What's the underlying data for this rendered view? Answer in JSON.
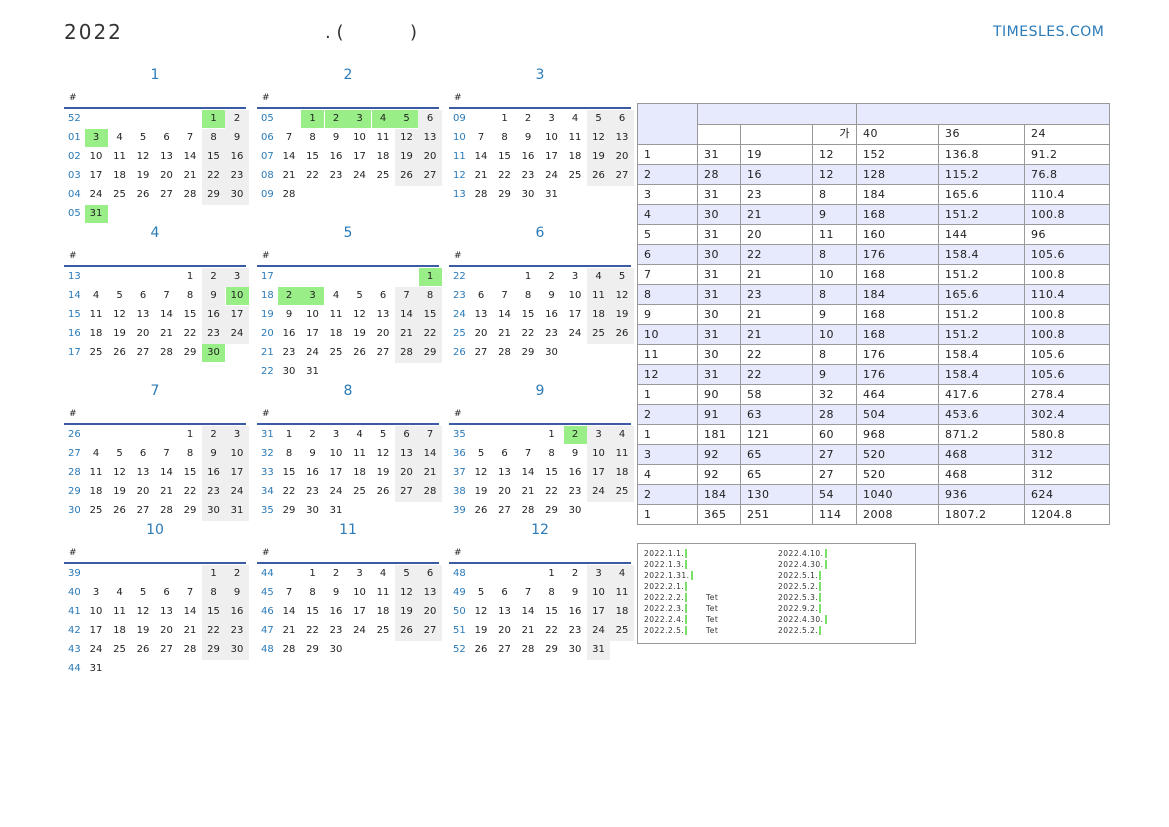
{
  "header": {
    "year": "2022",
    "subtitle_open": ". (",
    "subtitle_close": ")",
    "brand": "TIMESLES.COM"
  },
  "week_header": "#",
  "months": [
    {
      "name": "1",
      "highlight": [
        1,
        3,
        31
      ],
      "weeks": [
        {
          "week": "52",
          "days": [
            null,
            null,
            null,
            null,
            null,
            1,
            2
          ]
        },
        {
          "week": "01",
          "days": [
            3,
            4,
            5,
            6,
            7,
            8,
            9
          ]
        },
        {
          "week": "02",
          "days": [
            10,
            11,
            12,
            13,
            14,
            15,
            16
          ]
        },
        {
          "week": "03",
          "days": [
            17,
            18,
            19,
            20,
            21,
            22,
            23
          ]
        },
        {
          "week": "04",
          "days": [
            24,
            25,
            26,
            27,
            28,
            29,
            30
          ]
        },
        {
          "week": "05",
          "days": [
            31
          ]
        }
      ]
    },
    {
      "name": "2",
      "highlight": [
        1,
        2,
        3,
        4,
        5
      ],
      "weeks": [
        {
          "week": "05",
          "days": [
            null,
            1,
            2,
            3,
            4,
            5,
            6
          ]
        },
        {
          "week": "06",
          "days": [
            7,
            8,
            9,
            10,
            11,
            12,
            13
          ]
        },
        {
          "week": "07",
          "days": [
            14,
            15,
            16,
            17,
            18,
            19,
            20
          ]
        },
        {
          "week": "08",
          "days": [
            21,
            22,
            23,
            24,
            25,
            26,
            27
          ]
        },
        {
          "week": "09",
          "days": [
            28
          ]
        }
      ]
    },
    {
      "name": "3",
      "highlight": [],
      "weeks": [
        {
          "week": "09",
          "days": [
            null,
            1,
            2,
            3,
            4,
            5,
            6
          ]
        },
        {
          "week": "10",
          "days": [
            7,
            8,
            9,
            10,
            11,
            12,
            13
          ]
        },
        {
          "week": "11",
          "days": [
            14,
            15,
            16,
            17,
            18,
            19,
            20
          ]
        },
        {
          "week": "12",
          "days": [
            21,
            22,
            23,
            24,
            25,
            26,
            27
          ]
        },
        {
          "week": "13",
          "days": [
            28,
            29,
            30,
            31
          ]
        }
      ]
    },
    {
      "name": "4",
      "highlight": [
        10,
        30
      ],
      "weeks": [
        {
          "week": "13",
          "days": [
            null,
            null,
            null,
            null,
            1,
            2,
            3
          ]
        },
        {
          "week": "14",
          "days": [
            4,
            5,
            6,
            7,
            8,
            9,
            10
          ]
        },
        {
          "week": "15",
          "days": [
            11,
            12,
            13,
            14,
            15,
            16,
            17
          ]
        },
        {
          "week": "16",
          "days": [
            18,
            19,
            20,
            21,
            22,
            23,
            24
          ]
        },
        {
          "week": "17",
          "days": [
            25,
            26,
            27,
            28,
            29,
            30
          ]
        }
      ]
    },
    {
      "name": "5",
      "highlight": [
        1,
        2,
        3
      ],
      "weeks": [
        {
          "week": "17",
          "days": [
            null,
            null,
            null,
            null,
            null,
            null,
            1
          ]
        },
        {
          "week": "18",
          "days": [
            2,
            3,
            4,
            5,
            6,
            7,
            8
          ]
        },
        {
          "week": "19",
          "days": [
            9,
            10,
            11,
            12,
            13,
            14,
            15
          ]
        },
        {
          "week": "20",
          "days": [
            16,
            17,
            18,
            19,
            20,
            21,
            22
          ]
        },
        {
          "week": "21",
          "days": [
            23,
            24,
            25,
            26,
            27,
            28,
            29
          ]
        },
        {
          "week": "22",
          "days": [
            30,
            31
          ]
        }
      ]
    },
    {
      "name": "6",
      "highlight": [],
      "weeks": [
        {
          "week": "22",
          "days": [
            null,
            null,
            1,
            2,
            3,
            4,
            5
          ]
        },
        {
          "week": "23",
          "days": [
            6,
            7,
            8,
            9,
            10,
            11,
            12
          ]
        },
        {
          "week": "24",
          "days": [
            13,
            14,
            15,
            16,
            17,
            18,
            19
          ]
        },
        {
          "week": "25",
          "days": [
            20,
            21,
            22,
            23,
            24,
            25,
            26
          ]
        },
        {
          "week": "26",
          "days": [
            27,
            28,
            29,
            30
          ]
        }
      ]
    },
    {
      "name": "7",
      "highlight": [],
      "weeks": [
        {
          "week": "26",
          "days": [
            null,
            null,
            null,
            null,
            1,
            2,
            3
          ]
        },
        {
          "week": "27",
          "days": [
            4,
            5,
            6,
            7,
            8,
            9,
            10
          ]
        },
        {
          "week": "28",
          "days": [
            11,
            12,
            13,
            14,
            15,
            16,
            17
          ]
        },
        {
          "week": "29",
          "days": [
            18,
            19,
            20,
            21,
            22,
            23,
            24
          ]
        },
        {
          "week": "30",
          "days": [
            25,
            26,
            27,
            28,
            29,
            30,
            31
          ]
        }
      ]
    },
    {
      "name": "8",
      "highlight": [],
      "weeks": [
        {
          "week": "31",
          "days": [
            1,
            2,
            3,
            4,
            5,
            6,
            7
          ]
        },
        {
          "week": "32",
          "days": [
            8,
            9,
            10,
            11,
            12,
            13,
            14
          ]
        },
        {
          "week": "33",
          "days": [
            15,
            16,
            17,
            18,
            19,
            20,
            21
          ]
        },
        {
          "week": "34",
          "days": [
            22,
            23,
            24,
            25,
            26,
            27,
            28
          ]
        },
        {
          "week": "35",
          "days": [
            29,
            30,
            31
          ]
        }
      ]
    },
    {
      "name": "9",
      "highlight": [
        2
      ],
      "weeks": [
        {
          "week": "35",
          "days": [
            null,
            null,
            null,
            1,
            2,
            3,
            4
          ]
        },
        {
          "week": "36",
          "days": [
            5,
            6,
            7,
            8,
            9,
            10,
            11
          ]
        },
        {
          "week": "37",
          "days": [
            12,
            13,
            14,
            15,
            16,
            17,
            18
          ]
        },
        {
          "week": "38",
          "days": [
            19,
            20,
            21,
            22,
            23,
            24,
            25
          ]
        },
        {
          "week": "39",
          "days": [
            26,
            27,
            28,
            29,
            30
          ]
        }
      ]
    },
    {
      "name": "10",
      "highlight": [],
      "weeks": [
        {
          "week": "39",
          "days": [
            null,
            null,
            null,
            null,
            null,
            1,
            2
          ]
        },
        {
          "week": "40",
          "days": [
            3,
            4,
            5,
            6,
            7,
            8,
            9
          ]
        },
        {
          "week": "41",
          "days": [
            10,
            11,
            12,
            13,
            14,
            15,
            16
          ]
        },
        {
          "week": "42",
          "days": [
            17,
            18,
            19,
            20,
            21,
            22,
            23
          ]
        },
        {
          "week": "43",
          "days": [
            24,
            25,
            26,
            27,
            28,
            29,
            30
          ]
        },
        {
          "week": "44",
          "days": [
            31
          ]
        }
      ]
    },
    {
      "name": "11",
      "highlight": [],
      "weeks": [
        {
          "week": "44",
          "days": [
            null,
            1,
            2,
            3,
            4,
            5,
            6
          ]
        },
        {
          "week": "45",
          "days": [
            7,
            8,
            9,
            10,
            11,
            12,
            13
          ]
        },
        {
          "week": "46",
          "days": [
            14,
            15,
            16,
            17,
            18,
            19,
            20
          ]
        },
        {
          "week": "47",
          "days": [
            21,
            22,
            23,
            24,
            25,
            26,
            27
          ]
        },
        {
          "week": "48",
          "days": [
            28,
            29,
            30
          ]
        }
      ]
    },
    {
      "name": "12",
      "highlight": [],
      "weeks": [
        {
          "week": "48",
          "days": [
            null,
            null,
            null,
            1,
            2,
            3,
            4
          ]
        },
        {
          "week": "49",
          "days": [
            5,
            6,
            7,
            8,
            9,
            10,
            11
          ]
        },
        {
          "week": "50",
          "days": [
            12,
            13,
            14,
            15,
            16,
            17,
            18
          ]
        },
        {
          "week": "51",
          "days": [
            19,
            20,
            21,
            22,
            23,
            24,
            25
          ]
        },
        {
          "week": "52",
          "days": [
            26,
            27,
            28,
            29,
            30,
            31
          ]
        }
      ]
    }
  ],
  "table": {
    "header": [
      "가",
      "40",
      "36",
      "24"
    ],
    "rows": [
      [
        1,
        31,
        19,
        12,
        152,
        136.8,
        91.2
      ],
      [
        2,
        28,
        16,
        12,
        128,
        115.2,
        76.8
      ],
      [
        3,
        31,
        23,
        8,
        184,
        165.6,
        110.4
      ],
      [
        4,
        30,
        21,
        9,
        168,
        151.2,
        100.8
      ],
      [
        5,
        31,
        20,
        11,
        160,
        144,
        96
      ],
      [
        6,
        30,
        22,
        8,
        176,
        158.4,
        105.6
      ],
      [
        7,
        31,
        21,
        10,
        168,
        151.2,
        100.8
      ],
      [
        8,
        31,
        23,
        8,
        184,
        165.6,
        110.4
      ],
      [
        9,
        30,
        21,
        9,
        168,
        151.2,
        100.8
      ],
      [
        10,
        31,
        21,
        10,
        168,
        151.2,
        100.8
      ],
      [
        11,
        30,
        22,
        8,
        176,
        158.4,
        105.6
      ],
      [
        12,
        31,
        22,
        9,
        176,
        158.4,
        105.6
      ],
      [
        1,
        90,
        58,
        32,
        464,
        417.6,
        278.4
      ],
      [
        2,
        91,
        63,
        28,
        504,
        453.6,
        302.4
      ],
      [
        1,
        181,
        121,
        60,
        968,
        871.2,
        580.8
      ],
      [
        3,
        92,
        65,
        27,
        520,
        468,
        312
      ],
      [
        4,
        92,
        65,
        27,
        520,
        468,
        312
      ],
      [
        2,
        184,
        130,
        54,
        1040,
        936,
        624
      ],
      [
        1,
        365,
        251,
        114,
        2008,
        1807.2,
        1204.8
      ]
    ]
  },
  "holidays": {
    "left": [
      {
        "date": "2022.1.1."
      },
      {
        "date": "2022.1.3."
      },
      {
        "date": "2022.1.31."
      },
      {
        "date": "2022.2.1."
      },
      {
        "date": "2022.2.2.",
        "name": "Tet"
      },
      {
        "date": "2022.2.3.",
        "name": "Tet"
      },
      {
        "date": "2022.2.4.",
        "name": "Tet"
      },
      {
        "date": "2022.2.5.",
        "name": "Tet"
      }
    ],
    "right": [
      {
        "date": "2022.4.10."
      },
      {
        "date": "2022.4.30."
      },
      {
        "date": "2022.5.1."
      },
      {
        "date": "2022.5.2."
      },
      {
        "date": "2022.5.3."
      },
      {
        "date": "2022.9.2."
      },
      {
        "date": "2022.4.30."
      },
      {
        "date": "2022.5.2."
      }
    ]
  }
}
